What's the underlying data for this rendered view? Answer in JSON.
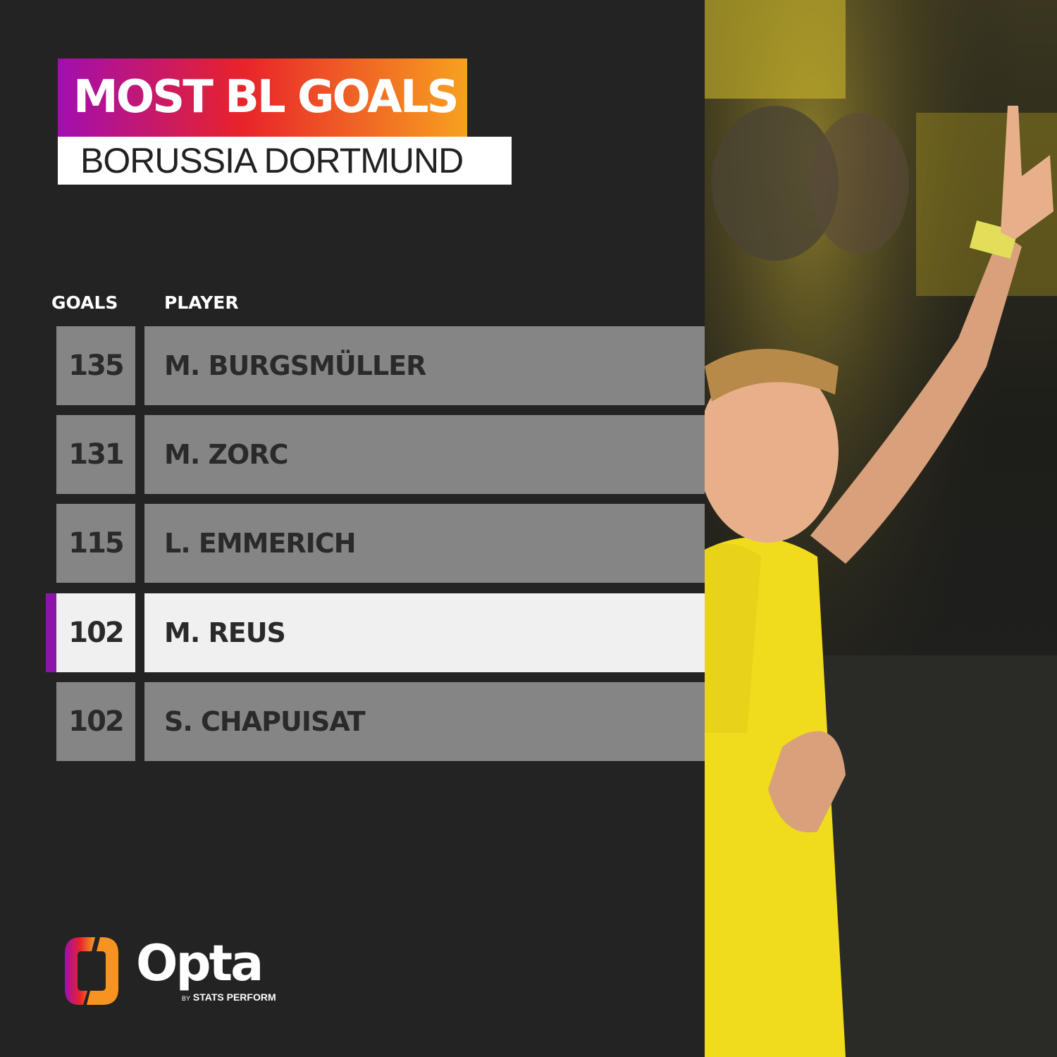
{
  "header": {
    "title": "MOST BL GOALS",
    "subtitle": "BORUSSIA DORTMUND"
  },
  "table": {
    "columns": [
      "GOALS",
      "PLAYER"
    ],
    "rows": [
      {
        "goals": "135",
        "player": "M. BURGSMÜLLER",
        "highlighted": false
      },
      {
        "goals": "131",
        "player": "M. ZORC",
        "highlighted": false
      },
      {
        "goals": "115",
        "player": "L. EMMERICH",
        "highlighted": false
      },
      {
        "goals": "102",
        "player": "M. REUS",
        "highlighted": true
      },
      {
        "goals": "102",
        "player": "S. CHAPUISAT",
        "highlighted": false
      }
    ]
  },
  "branding": {
    "logo_text": "Opta",
    "by": "BY",
    "company": "STATS PERFORM"
  },
  "colors": {
    "background": "#232323",
    "gradient": [
      "#a20eb0",
      "#e8232a",
      "#f7a11f"
    ],
    "row": "#858585",
    "highlight_row": "#f0f0f0",
    "highlight_marker": "#8d14a8"
  }
}
